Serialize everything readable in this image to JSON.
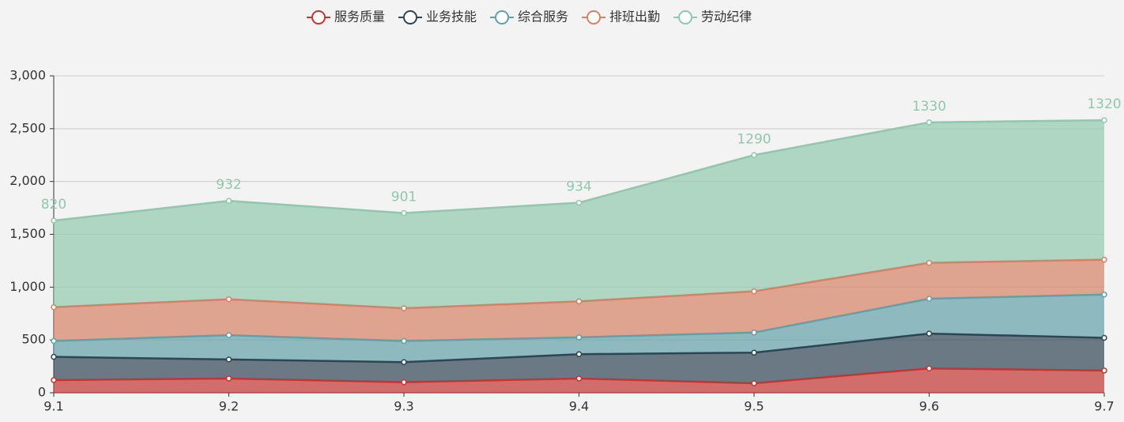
{
  "chart_data": {
    "type": "stacked-area",
    "categories": [
      "9.1",
      "9.2",
      "9.3",
      "9.4",
      "9.5",
      "9.6",
      "9.7"
    ],
    "series": [
      {
        "name": "服务质量",
        "color": "#c23531",
        "values": [
          120,
          135,
          100,
          135,
          90,
          230,
          210
        ]
      },
      {
        "name": "业务技能",
        "color": "#2f4554",
        "values": [
          220,
          180,
          190,
          230,
          290,
          330,
          310
        ]
      },
      {
        "name": "综合服务",
        "color": "#61a0a8",
        "values": [
          150,
          230,
          200,
          160,
          190,
          330,
          410
        ]
      },
      {
        "name": "排班出勤",
        "color": "#d48265",
        "values": [
          320,
          340,
          310,
          340,
          390,
          340,
          330
        ]
      },
      {
        "name": "劳动纪律",
        "color": "#91c7ae",
        "values": [
          820,
          932,
          901,
          934,
          1290,
          1330,
          1320
        ],
        "labels": true
      }
    ],
    "ylim": [
      0,
      3000
    ],
    "yticks": [
      0,
      500,
      {
        "value": 1000,
        "label": "1,000"
      },
      {
        "value": 1500,
        "label": "1,500"
      },
      {
        "value": 2000,
        "label": "2,000"
      },
      {
        "value": 2500,
        "label": "2,500"
      },
      {
        "value": 3000,
        "label": "3,000"
      }
    ],
    "grid": true
  }
}
